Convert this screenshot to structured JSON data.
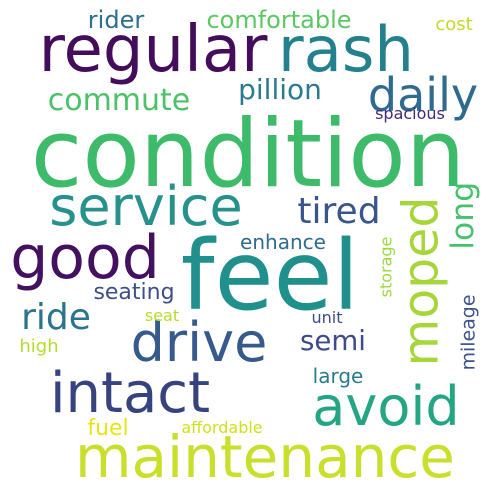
{
  "words": [
    {
      "id": "condition",
      "text": "condition",
      "color": "#3dbb6a"
    },
    {
      "id": "feel",
      "text": "feel",
      "color": "#20908c"
    },
    {
      "id": "regular",
      "text": "regular",
      "color": "#430d5c"
    },
    {
      "id": "rash",
      "text": "rash",
      "color": "#23818d"
    },
    {
      "id": "maintenance",
      "text": "maintenance",
      "color": "#c8df2b"
    },
    {
      "id": "intact",
      "text": "intact",
      "color": "#36437f"
    },
    {
      "id": "drive",
      "text": "drive",
      "color": "#355a8b"
    },
    {
      "id": "service",
      "text": "service",
      "color": "#27928c"
    },
    {
      "id": "avoid",
      "text": "avoid",
      "color": "#24a584"
    },
    {
      "id": "good",
      "text": "good",
      "color": "#43115f"
    },
    {
      "id": "moped",
      "text": "moped",
      "color": "#a7d63a"
    },
    {
      "id": "daily",
      "text": "daily",
      "color": "#2f6b8e"
    },
    {
      "id": "commute",
      "text": "commute",
      "color": "#4cc16a"
    },
    {
      "id": "tired",
      "text": "tired",
      "color": "#39568c"
    },
    {
      "id": "ride",
      "text": "ride",
      "color": "#2b748e"
    },
    {
      "id": "semi",
      "text": "semi",
      "color": "#3e4a89"
    },
    {
      "id": "long",
      "text": "long",
      "color": "#46c26c"
    },
    {
      "id": "comfortable",
      "text": "comfortable",
      "color": "#5cc863"
    },
    {
      "id": "rider",
      "text": "rider",
      "color": "#2d6f8e"
    },
    {
      "id": "pillion",
      "text": "pillion",
      "color": "#2b7b8e"
    },
    {
      "id": "enhance",
      "text": "enhance",
      "color": "#2f6c8e"
    },
    {
      "id": "seating",
      "text": "seating",
      "color": "#3d4e8a"
    },
    {
      "id": "large",
      "text": "large",
      "color": "#297b8e"
    },
    {
      "id": "mileage",
      "text": "mileage",
      "color": "#3b538b"
    },
    {
      "id": "cost",
      "text": "cost",
      "color": "#c1db2a"
    },
    {
      "id": "spacious",
      "text": "spacious",
      "color": "#482878"
    },
    {
      "id": "storage",
      "text": "storage",
      "color": "#9ad93f"
    },
    {
      "id": "high",
      "text": "high",
      "color": "#b2dd2d"
    },
    {
      "id": "seat",
      "text": "seat",
      "color": "#b5de2b"
    },
    {
      "id": "unit",
      "text": "unit",
      "color": "#3e4c8a"
    },
    {
      "id": "fuel",
      "text": "fuel",
      "color": "#e8e419"
    },
    {
      "id": "affordable",
      "text": "affordable",
      "color": "#cfe11c"
    }
  ]
}
